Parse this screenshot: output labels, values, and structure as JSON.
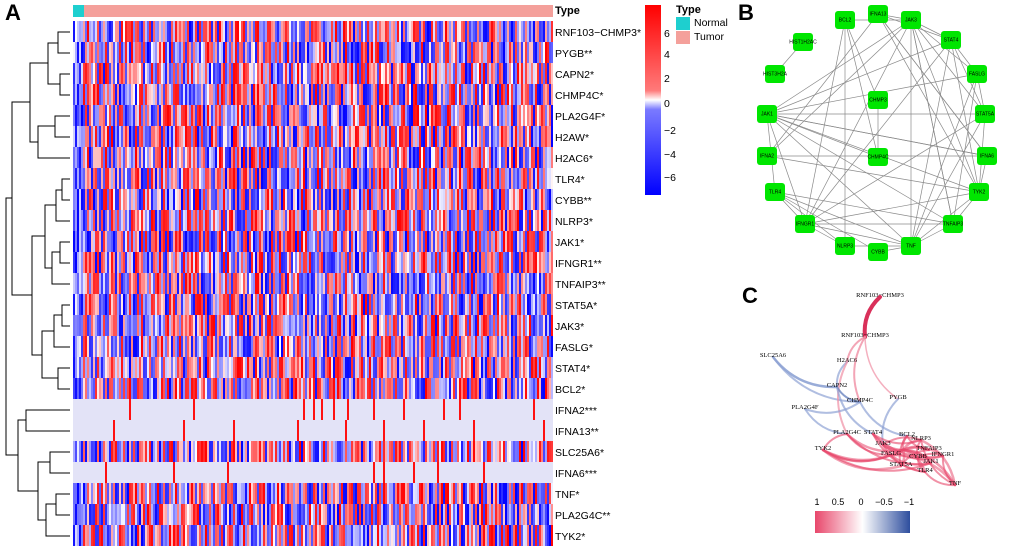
{
  "panels": {
    "a": "A",
    "b": "B",
    "c": "C"
  },
  "heatmap": {
    "type_label": "Type",
    "legend_title": "Type",
    "groups": [
      {
        "name": "Normal",
        "color": "#1ECFCF"
      },
      {
        "name": "Tumor",
        "color": "#F4A09B"
      }
    ],
    "genes": [
      "RNF103−CHMP3*",
      "PYGB**",
      "CAPN2*",
      "CHMP4C*",
      "PLA2G4F*",
      "H2AW*",
      "H2AC6*",
      "TLR4*",
      "CYBB**",
      "NLRP3*",
      "JAK1*",
      "IFNGR1**",
      "TNFAIP3**",
      "STAT5A*",
      "JAK3*",
      "FASLG*",
      "STAT4*",
      "BCL2*",
      "IFNA2***",
      "IFNA13**",
      "SLC25A6*",
      "IFNA6***",
      "TNF*",
      "PLA2G4C**",
      "TYK2*"
    ],
    "color_scale": {
      "ticks": [
        "6",
        "4",
        "2",
        "0",
        "−2",
        "−4",
        "−6"
      ],
      "high": "#FF0000",
      "mid": "#FFFFFF",
      "low": "#0000FF"
    }
  },
  "network": {
    "node_color": "#00E600",
    "nodes": [
      "BCL2",
      "IFNA13",
      "JAK3",
      "HIST1H2AC",
      "STAT4",
      "HIST3H2A",
      "FASLG",
      "CHMP3",
      "STAT5A",
      "JAK1",
      "IFNA2",
      "CHMP4C",
      "IFNA6",
      "TLR4",
      "TYK2",
      "IFNGR1",
      "TNFAIP3",
      "NLRP3",
      "CYBB",
      "TNF"
    ]
  },
  "correlation": {
    "labels": [
      "RNF103−CHMP3",
      "RNF103−CHMP3",
      "SLC25A6",
      "H2AC6",
      "CAPN2",
      "CHMP4C",
      "PYGB",
      "PLA2G4F",
      "PLA2G4C",
      "STAT4",
      "BCL2",
      "NLRP3",
      "TYK2",
      "JAK3",
      "TNFAIP3",
      "IFNGR1",
      "FASLG",
      "CYBB",
      "STAT5A",
      "TLR4",
      "JAK1",
      "TNF"
    ],
    "scale_ticks": [
      "1",
      "0.5",
      "0",
      "−0.5",
      "−1"
    ],
    "scale_colors": {
      "pos": "#E8476B",
      "mid": "#FFFFFF",
      "neg": "#2E4E9E"
    }
  }
}
